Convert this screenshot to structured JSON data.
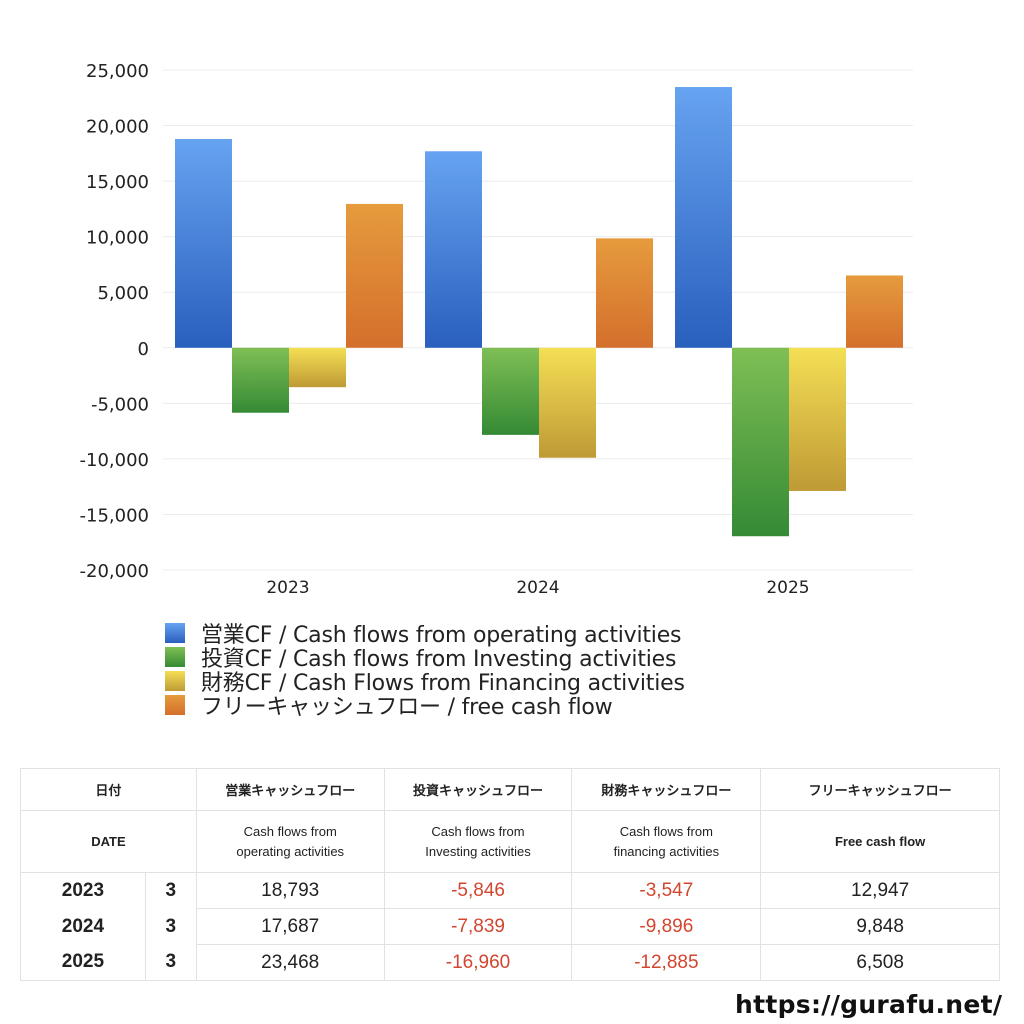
{
  "chart_data": {
    "type": "bar",
    "title": "",
    "xlabel": "",
    "ylabel": "",
    "categories": [
      "2023",
      "2024",
      "2025"
    ],
    "ylim": [
      -20000,
      25000
    ],
    "yticks": [
      25000,
      20000,
      15000,
      10000,
      5000,
      0,
      -5000,
      -10000,
      -15000,
      -20000
    ],
    "ytick_labels": [
      "25,000",
      "20,000",
      "15,000",
      "10,000",
      "5,000",
      "0",
      "-5,000",
      "-10,000",
      "-15,000",
      "-20,000"
    ],
    "grid": true,
    "legend_position": "bottom",
    "series": [
      {
        "name": "営業CF / Cash flows from operating activities",
        "values": [
          18793,
          17687,
          23468
        ],
        "color_top": "#66a3f0",
        "color_bottom": "#2a5fbe"
      },
      {
        "name": "投資CF / Cash flows from Investing activities",
        "values": [
          -5846,
          -7839,
          -16960
        ],
        "color_top": "#7fbf55",
        "color_bottom": "#358a35"
      },
      {
        "name": "財務CF / Cash Flows from Financing activities",
        "values": [
          -3547,
          -9896,
          -12885
        ],
        "color_top": "#f4df55",
        "color_bottom": "#bf9a35"
      },
      {
        "name": "フリーキャッシュフロー / free cash flow",
        "values": [
          12947,
          9848,
          6508
        ],
        "color_top": "#e69b3d",
        "color_bottom": "#d46f2c"
      }
    ]
  },
  "legend": [
    {
      "label": "営業CF / Cash flows from operating activities",
      "color": "#4a86de"
    },
    {
      "label": "投資CF / Cash flows from Investing activities",
      "color": "#58a445"
    },
    {
      "label": "財務CF / Cash Flows from Financing activities",
      "color": "#dcc347"
    },
    {
      "label": "フリーキャッシュフロー / free cash flow",
      "color": "#dd8535"
    }
  ],
  "table": {
    "header_jp": [
      "日付",
      "営業キャッシュフロー",
      "投資キャッシュフロー",
      "財務キャッシュフロー",
      "フリーキャッシュフロー"
    ],
    "header_en": [
      "DATE",
      "Cash flows from\noperating activities",
      "Cash flows from\nInvesting activities",
      "Cash flows from\nfinancing activities",
      "Free cash flow"
    ],
    "rows": [
      {
        "year": "2023",
        "month": "3",
        "operating": "18,793",
        "investing": "-5,846",
        "financing": "-3,547",
        "free": "12,947"
      },
      {
        "year": "2024",
        "month": "3",
        "operating": "17,687",
        "investing": "-7,839",
        "financing": "-9,896",
        "free": "9,848"
      },
      {
        "year": "2025",
        "month": "3",
        "operating": "23,468",
        "investing": "-16,960",
        "financing": "-12,885",
        "free": "6,508"
      }
    ],
    "negative_color": "#d2462f"
  },
  "footer": {
    "url": "https://gurafu.net/"
  }
}
